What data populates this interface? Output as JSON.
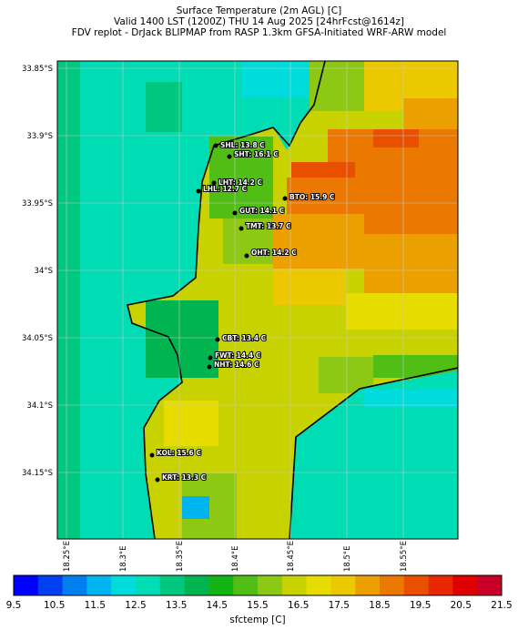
{
  "title": {
    "line1": "Surface Temperature (2m AGL) [C]",
    "line2": "Valid 1400 LST (1200Z) THU 14 Aug 2025 [24hrFcst@1614z]",
    "line3": "FDV replot - DrJack BLIPMAP from RASP 1.3km GFSA-Initiated WRF-ARW model"
  },
  "axes": {
    "lat_labels": [
      "33.85°S",
      "33.9°S",
      "33.95°S",
      "34°S",
      "34.05°S",
      "34.1°S",
      "34.15°S"
    ],
    "lon_labels": [
      "18.25°E",
      "18.3°E",
      "18.35°E",
      "18.4°E",
      "18.45°E",
      "18.5°E",
      "18.55°E"
    ]
  },
  "stations": [
    {
      "label": "SHL: 13.8 C"
    },
    {
      "label": "SHT: 16.1 C"
    },
    {
      "label": "LHT: 14.2 C"
    },
    {
      "label": "LHL: 12.7 C"
    },
    {
      "label": "BTO: 15.9 C"
    },
    {
      "label": "GUT: 14.1 C"
    },
    {
      "label": "TMT: 13.7 C"
    },
    {
      "label": "OHT: 14.2 C"
    },
    {
      "label": "CBT: 13.4 C"
    },
    {
      "label": "FWT: 14.4 C"
    },
    {
      "label": "NHT: 14.6 C"
    },
    {
      "label": "KOL: 15.6 C"
    },
    {
      "label": "KRT: 13.3 C"
    }
  ],
  "colorbar": {
    "label": "sfctemp [C]",
    "ticks": [
      "9.5",
      "10.5",
      "11.5",
      "12.5",
      "13.5",
      "14.5",
      "15.5",
      "16.5",
      "17.5",
      "18.5",
      "19.5",
      "20.5",
      "21.5"
    ],
    "colors": [
      "#0000ff",
      "#0040f0",
      "#0080f0",
      "#00b4f0",
      "#00dcdc",
      "#00dcb4",
      "#00c880",
      "#00b450",
      "#14b414",
      "#50be14",
      "#8cc814",
      "#c8d200",
      "#e6dc00",
      "#ebc800",
      "#eba000",
      "#eb7800",
      "#e85000",
      "#e82800",
      "#e00000",
      "#c80028"
    ]
  }
}
